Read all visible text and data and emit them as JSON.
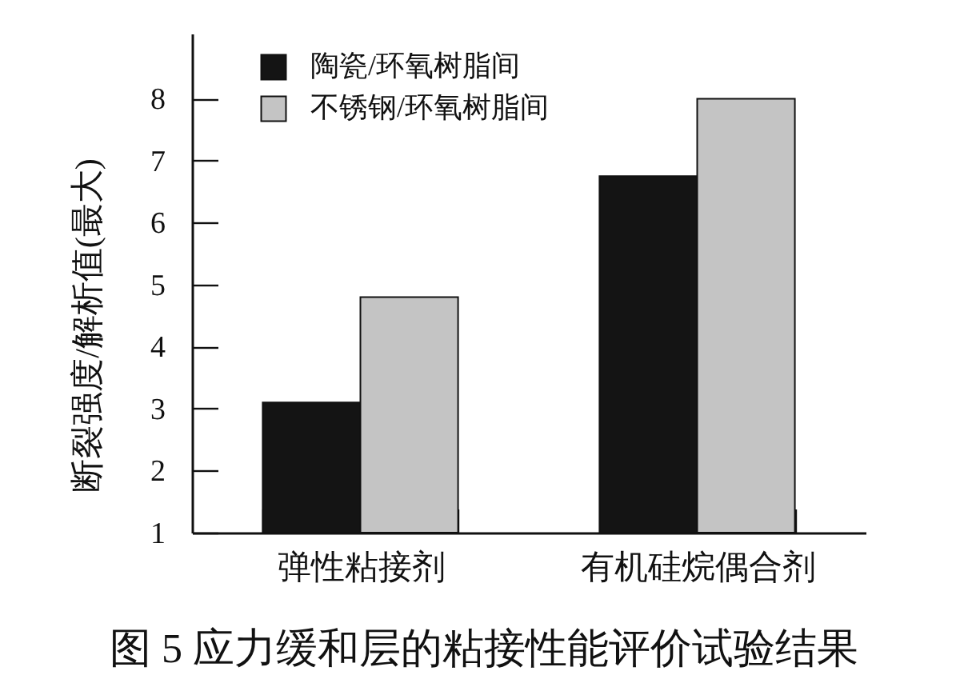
{
  "chart_data": {
    "type": "bar",
    "title": "图 5  应力缓和层的粘接性能评价试验结果",
    "ylabel": "断裂强度/解析值(最大)",
    "categories": [
      "弹性粘接剂",
      "有机硅烷偶合剂"
    ],
    "series": [
      {
        "name": "陶瓷/环氧树脂间",
        "color": "#141414",
        "values": [
          3.1,
          6.75
        ]
      },
      {
        "name": "不锈钢/环氧树脂间",
        "color": "#c4c4c4",
        "values": [
          4.8,
          8.0
        ]
      }
    ],
    "ylim": [
      1,
      9.05
    ],
    "yticks": [
      1,
      2,
      3,
      4,
      5,
      6,
      7,
      8
    ],
    "legend": "top left"
  }
}
